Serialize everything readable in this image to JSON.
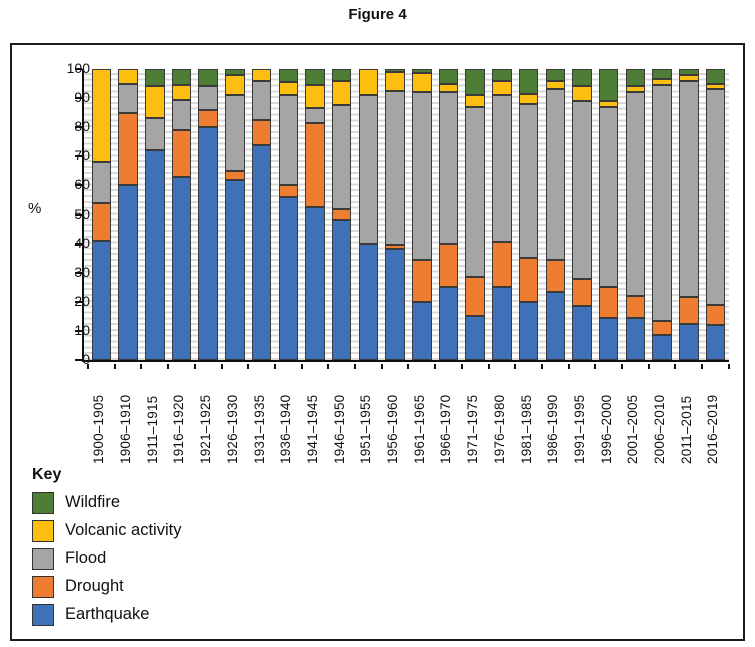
{
  "title": "Figure 4",
  "chart_data": {
    "type": "bar",
    "stacked": true,
    "percent": true,
    "title": "Figure 4",
    "xlabel": "",
    "ylabel": "%",
    "ylim": [
      0,
      100
    ],
    "ytick_step": 10,
    "yticks": [
      0,
      10,
      20,
      30,
      40,
      50,
      60,
      70,
      80,
      90,
      100
    ],
    "grid": "minor-horizontal-every-2",
    "legend_position": "bottom-left",
    "categories": [
      "1900–1905",
      "1906–1910",
      "1911–1915",
      "1916–1920",
      "1921–1925",
      "1926–1930",
      "1931–1935",
      "1936–1940",
      "1941–1945",
      "1946–1950",
      "1951–1955",
      "1956–1960",
      "1961–1965",
      "1966–1970",
      "1971–1975",
      "1976–1980",
      "1981–1985",
      "1986–1990",
      "1991–1995",
      "1996–2000",
      "2001–2005",
      "2006–2010",
      "2011–2015",
      "2016–2019"
    ],
    "series": [
      {
        "name": "Earthquake",
        "color": "#3E71B7",
        "values": [
          41,
          60,
          72,
          63,
          80,
          62,
          74,
          56,
          52.5,
          48,
          40,
          38,
          20,
          25,
          15,
          25,
          20,
          23.5,
          18.5,
          14.5,
          14.5,
          8.5,
          12.5,
          12
        ]
      },
      {
        "name": "Drought",
        "color": "#ED7D31",
        "values": [
          13,
          25,
          0,
          16,
          6,
          3,
          8.5,
          4,
          29,
          4,
          0,
          1.5,
          14.5,
          15,
          13.5,
          15.5,
          15,
          11,
          9.5,
          10.5,
          7.5,
          5,
          9,
          7
        ]
      },
      {
        "name": "Flood",
        "color": "#A5A5A5",
        "values": [
          14,
          10,
          11,
          10.5,
          8,
          26,
          13.5,
          31,
          5,
          35.5,
          51,
          53,
          57.5,
          52,
          58.5,
          50.5,
          53,
          58.5,
          61,
          62,
          70,
          81,
          74.5,
          74
        ]
      },
      {
        "name": "Volcanic activity",
        "color": "#FCBF10",
        "values": [
          32,
          5,
          11,
          5,
          0,
          7,
          4,
          4.5,
          8,
          8.5,
          9,
          6.5,
          6.5,
          3,
          4,
          5,
          3.5,
          3,
          5,
          2,
          2,
          2,
          2,
          2
        ]
      },
      {
        "name": "Wildfire",
        "color": "#4E7E36",
        "values": [
          0,
          0,
          6,
          5.5,
          6,
          2,
          0,
          4.5,
          5.5,
          4,
          0,
          1,
          1.5,
          5,
          9,
          4,
          8.5,
          4,
          6,
          11,
          6,
          3.5,
          2,
          5
        ]
      }
    ],
    "legend": {
      "title": "Key",
      "order": [
        "Wildfire",
        "Volcanic activity",
        "Flood",
        "Drought",
        "Earthquake"
      ]
    }
  }
}
